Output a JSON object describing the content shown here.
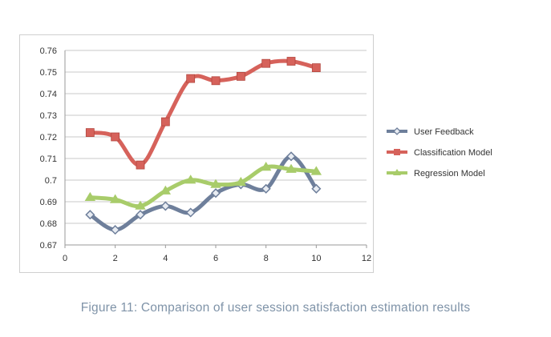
{
  "chart_data": {
    "type": "line",
    "x": [
      1,
      2,
      3,
      4,
      5,
      6,
      7,
      8,
      9,
      10
    ],
    "series": [
      {
        "name": "User Feedback",
        "color": "#6e7f9b",
        "marker": "diamond",
        "values": [
          0.684,
          0.677,
          0.684,
          0.688,
          0.685,
          0.694,
          0.698,
          0.696,
          0.711,
          0.696
        ]
      },
      {
        "name": "Classification Model",
        "color": "#d6625b",
        "marker": "square",
        "values": [
          0.722,
          0.72,
          0.707,
          0.727,
          0.747,
          0.746,
          0.748,
          0.754,
          0.755,
          0.752
        ]
      },
      {
        "name": "Regression Model",
        "color": "#a8cc6a",
        "marker": "triangle",
        "values": [
          0.692,
          0.691,
          0.688,
          0.695,
          0.7,
          0.698,
          0.699,
          0.706,
          0.705,
          0.704
        ]
      }
    ],
    "xlim": [
      0,
      12
    ],
    "ylim": [
      0.67,
      0.76
    ],
    "xticks": [
      "0",
      "2",
      "4",
      "6",
      "8",
      "10",
      "12"
    ],
    "yticks": [
      "0.67",
      "0.68",
      "0.69",
      "0.7",
      "0.71",
      "0.72",
      "0.73",
      "0.74",
      "0.75",
      "0.76"
    ],
    "grid": "horizontal",
    "legend": "right"
  },
  "caption": "Figure 11: Comparison of user session satisfaction estimation results"
}
